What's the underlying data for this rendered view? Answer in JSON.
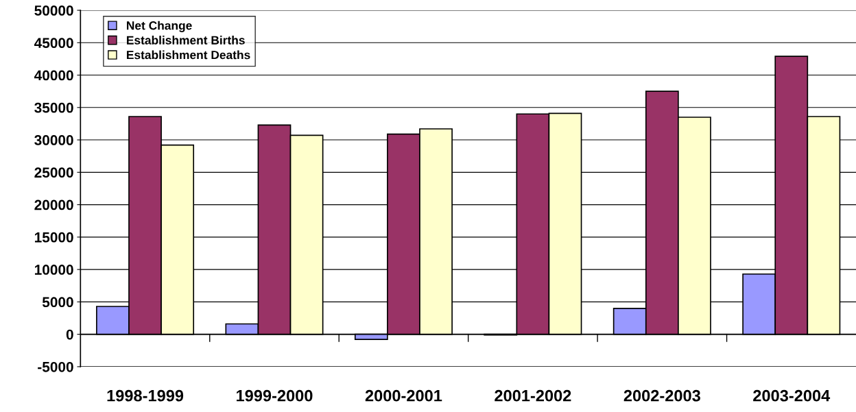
{
  "chart_data": {
    "type": "bar",
    "categories": [
      "1998-1999",
      "1999-2000",
      "2000-2001",
      "2001-2002",
      "2002-2003",
      "2003-2004"
    ],
    "series": [
      {
        "name": "Net Change",
        "color": "#9999ff",
        "values": [
          4300,
          1600,
          -800,
          -100,
          4000,
          9300
        ]
      },
      {
        "name": "Establishment Births",
        "color": "#993366",
        "values": [
          33600,
          32300,
          30900,
          34000,
          37500,
          42900
        ]
      },
      {
        "name": "Establishment Deaths",
        "color": "#ffffcc",
        "values": [
          29200,
          30700,
          31700,
          34100,
          33500,
          33600
        ]
      }
    ],
    "ylim": [
      -5000,
      50000
    ],
    "yticks": [
      -5000,
      0,
      5000,
      10000,
      15000,
      20000,
      25000,
      30000,
      35000,
      40000,
      45000,
      50000
    ],
    "grid": "y",
    "legend": "top left"
  }
}
